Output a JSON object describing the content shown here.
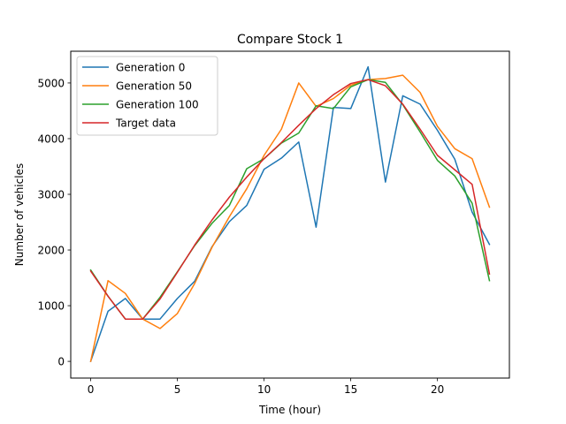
{
  "chart_data": {
    "type": "line",
    "title": "Compare Stock 1",
    "xlabel": "Time (hour)",
    "ylabel": "Number of vehicles",
    "xlim": [
      -1.15,
      24.15
    ],
    "ylim": [
      -300,
      5570
    ],
    "xticks": [
      0,
      5,
      10,
      15,
      20
    ],
    "yticks": [
      0,
      1000,
      2000,
      3000,
      4000,
      5000
    ],
    "grid": false,
    "legend_position": "upper-left",
    "x": [
      0,
      1,
      2,
      3,
      4,
      5,
      6,
      7,
      8,
      9,
      10,
      11,
      12,
      13,
      14,
      15,
      16,
      17,
      18,
      19,
      20,
      21,
      22,
      23
    ],
    "series": [
      {
        "name": "Generation 0",
        "color": "#1f77b4",
        "values": [
          0,
          900,
          1130,
          760,
          760,
          1130,
          1440,
          2060,
          2510,
          2800,
          3450,
          3650,
          3940,
          2410,
          4560,
          4540,
          5290,
          3220,
          4770,
          4620,
          4150,
          3630,
          2680,
          2100
        ]
      },
      {
        "name": "Generation 50",
        "color": "#ff7f0e",
        "values": [
          0,
          1450,
          1220,
          760,
          590,
          860,
          1400,
          2050,
          2600,
          3100,
          3700,
          4170,
          5000,
          4580,
          4720,
          4960,
          5060,
          5080,
          5140,
          4830,
          4220,
          3820,
          3640,
          2770
        ]
      },
      {
        "name": "Generation 100",
        "color": "#2ca02c",
        "values": [
          1640,
          1170,
          760,
          760,
          1150,
          1610,
          2080,
          2480,
          2800,
          3460,
          3640,
          3920,
          4100,
          4590,
          4540,
          4930,
          5060,
          5010,
          4610,
          4120,
          3610,
          3330,
          2840,
          1450
        ]
      },
      {
        "name": "Target data",
        "color": "#d62728",
        "values": [
          1620,
          1170,
          760,
          760,
          1120,
          1600,
          2090,
          2540,
          2950,
          3310,
          3640,
          3930,
          4240,
          4540,
          4790,
          4990,
          5060,
          4950,
          4620,
          4170,
          3700,
          3440,
          3180,
          1570
        ]
      }
    ]
  }
}
